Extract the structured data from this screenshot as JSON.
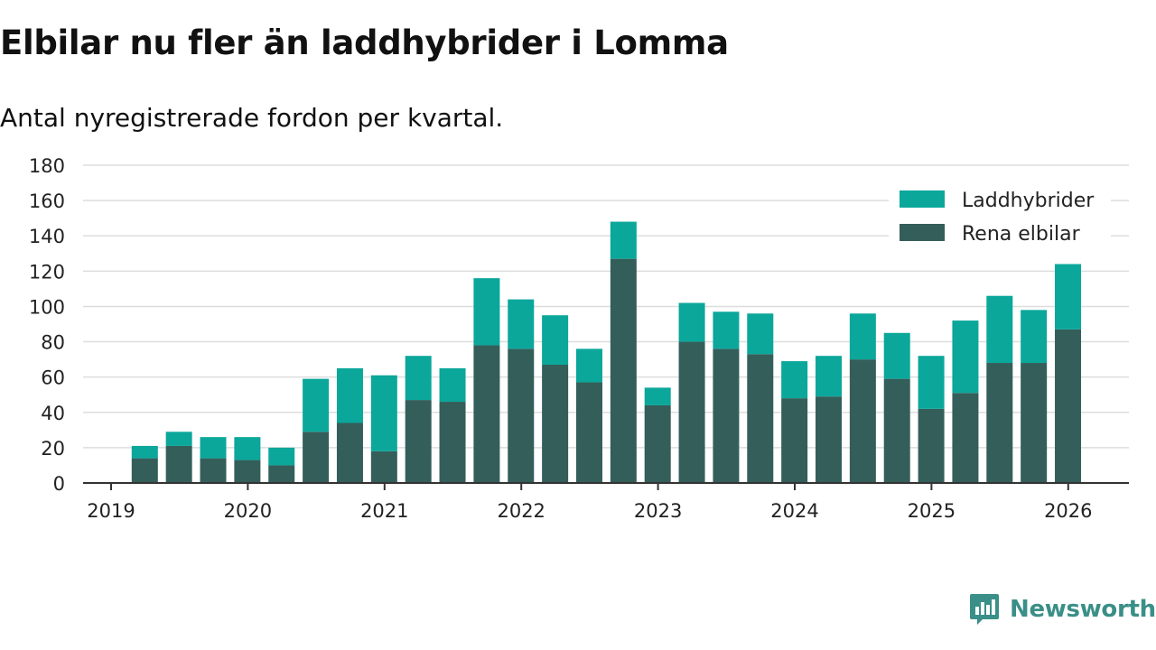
{
  "colors": {
    "electric": "#345e5a",
    "hybrid": "#0ba79b",
    "grid": "#dddddd",
    "axis": "#333333",
    "brand": "#3a8f88"
  },
  "brand": {
    "name": "Newsworthy",
    "icon": "newsworthy-logo-icon"
  },
  "chart_data": {
    "type": "bar",
    "stacked": true,
    "title": "Elbilar nu fler än laddhybrider i Lomma",
    "subtitle": "Antal nyregistrerade fordon per kvartal.",
    "xlabel": "",
    "ylabel": "",
    "ylim": [
      0,
      180
    ],
    "yticks": [
      0,
      20,
      40,
      60,
      80,
      100,
      120,
      140,
      160,
      180
    ],
    "xticks": [
      "2019",
      "2020",
      "2021",
      "2022",
      "2023",
      "2024",
      "2025",
      "2026"
    ],
    "grid": true,
    "legend_position": "top-right",
    "categories": [
      "2019 Q2",
      "2019 Q3",
      "2019 Q4",
      "2020 Q1",
      "2020 Q2",
      "2020 Q3",
      "2020 Q4",
      "2021 Q1",
      "2021 Q2",
      "2021 Q3",
      "2021 Q4",
      "2022 Q1",
      "2022 Q2",
      "2022 Q3",
      "2022 Q4",
      "2023 Q1",
      "2023 Q2",
      "2023 Q3",
      "2023 Q4",
      "2024 Q1",
      "2024 Q2",
      "2024 Q3",
      "2024 Q4",
      "2025 Q1",
      "2025 Q2",
      "2025 Q3",
      "2025 Q4",
      "2026 Q1"
    ],
    "series": [
      {
        "name": "Rena elbilar",
        "values": [
          14,
          21,
          14,
          13,
          10,
          29,
          34,
          18,
          47,
          46,
          78,
          76,
          67,
          57,
          127,
          44,
          80,
          76,
          73,
          48,
          49,
          70,
          59,
          42,
          51,
          68,
          68,
          87
        ]
      },
      {
        "name": "Laddhybrider",
        "values": [
          7,
          8,
          12,
          13,
          10,
          30,
          31,
          43,
          25,
          19,
          38,
          28,
          28,
          19,
          21,
          10,
          22,
          21,
          23,
          21,
          23,
          26,
          26,
          30,
          41,
          38,
          30,
          37
        ]
      }
    ],
    "legend": [
      "Laddhybrider",
      "Rena elbilar"
    ]
  }
}
